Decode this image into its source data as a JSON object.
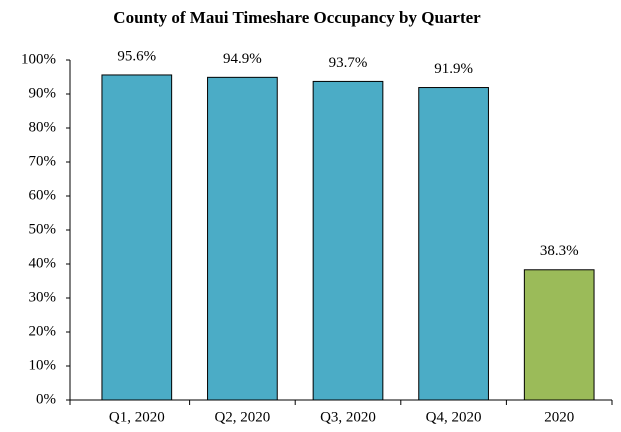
{
  "chart_data": {
    "type": "bar",
    "title": "County of Maui Timeshare Occupancy by Quarter",
    "categories": [
      "Q1, 2020",
      "Q2, 2020",
      "Q3, 2020",
      "Q4, 2020",
      "2020"
    ],
    "values": [
      95.6,
      94.9,
      93.7,
      91.9,
      38.3
    ],
    "value_labels": [
      "95.6%",
      "94.9%",
      "93.7%",
      "91.9%",
      "38.3%"
    ],
    "colors": [
      "#4bacc6",
      "#4bacc6",
      "#4bacc6",
      "#4bacc6",
      "#9bbb59"
    ],
    "ylim": [
      0,
      100
    ],
    "yticks": [
      {
        "value": 0,
        "label": "0%"
      },
      {
        "value": 10,
        "label": "10%"
      },
      {
        "value": 20,
        "label": "20%"
      },
      {
        "value": 30,
        "label": "30%"
      },
      {
        "value": 40,
        "label": "40%"
      },
      {
        "value": 50,
        "label": "50%"
      },
      {
        "value": 60,
        "label": "60%"
      },
      {
        "value": 70,
        "label": "70%"
      },
      {
        "value": 80,
        "label": "80%"
      },
      {
        "value": 90,
        "label": "90%"
      },
      {
        "value": 100,
        "label": "100%"
      }
    ],
    "grid": false
  }
}
